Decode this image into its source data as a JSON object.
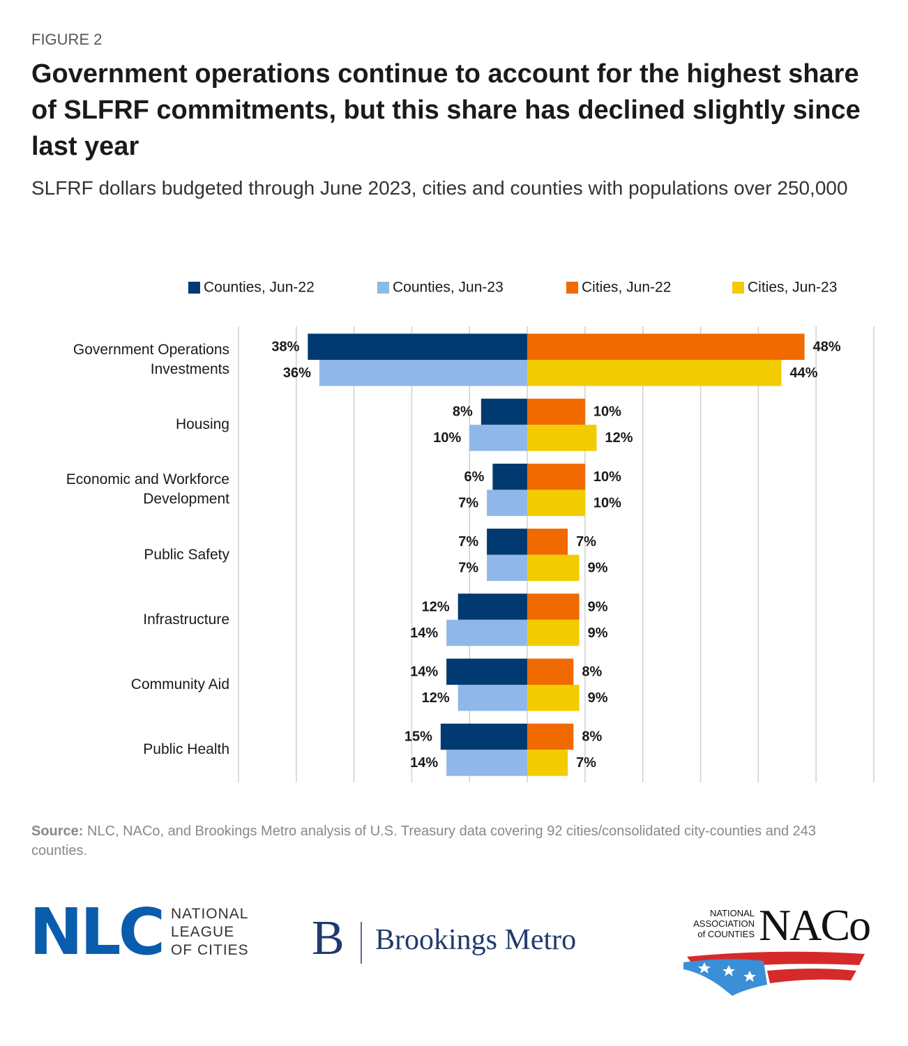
{
  "figure_label": "FIGURE 2",
  "chart_data": {
    "type": "butterfly-bar",
    "title": "Government operations continue to account for the highest share of SLFRF commitments, but this share has declined slightly since last year",
    "subtitle": "SLFRF dollars budgeted through June 2023, cities and counties with populations over 250,000",
    "categories": [
      "Government Operations Investments",
      "Housing",
      "Economic and Workforce Development",
      "Public Safety",
      "Infrastructure",
      "Community Aid",
      "Public Health"
    ],
    "series": [
      {
        "name": "Counties, Jun-22",
        "color": "#003a70",
        "values": [
          38,
          8,
          6,
          7,
          12,
          14,
          15
        ],
        "value_labels": [
          "38%",
          "8%",
          "6%",
          "7%",
          "12%",
          "14%",
          "15%"
        ]
      },
      {
        "name": "Counties, Jun-23",
        "color": "#8fb8e8",
        "values": [
          36,
          10,
          7,
          7,
          14,
          12,
          14
        ],
        "value_labels": [
          "36%",
          "10%",
          "7%",
          "7%",
          "14%",
          "12%",
          "14%"
        ]
      },
      {
        "name": "Cities, Jun-22",
        "color": "#f06a00",
        "values": [
          48,
          10,
          10,
          7,
          9,
          8,
          8
        ],
        "value_labels": [
          "48%",
          "10%",
          "10%",
          "7%",
          "9%",
          "8%",
          "8%"
        ]
      },
      {
        "name": "Cities, Jun-23",
        "color": "#f2cc00",
        "values": [
          44,
          12,
          10,
          9,
          9,
          9,
          7
        ],
        "value_labels": [
          "44%",
          "12%",
          "10%",
          "9%",
          "9%",
          "9%",
          "7%"
        ]
      }
    ],
    "xlim": [
      -50,
      60
    ],
    "xticks": [
      -50,
      -40,
      -30,
      -20,
      -10,
      0,
      10,
      20,
      30,
      40,
      50,
      60
    ],
    "grid": true,
    "legend": "top"
  },
  "source": {
    "label": "Source:",
    "text": "NLC, NACo, and Brookings Metro analysis of U.S. Treasury data covering 92 cities/consolidated city-counties and 243 counties."
  },
  "logos": {
    "nlc": {
      "mark": "NLC",
      "lines": [
        "NATIONAL",
        "LEAGUE",
        "OF CITIES"
      ]
    },
    "brookings": {
      "mark": "B",
      "name": "Brookings Metro"
    },
    "naco": {
      "lines": [
        "NATIONAL",
        "ASSOCIATION",
        "of COUNTIES"
      ],
      "mark": "NACo"
    }
  }
}
